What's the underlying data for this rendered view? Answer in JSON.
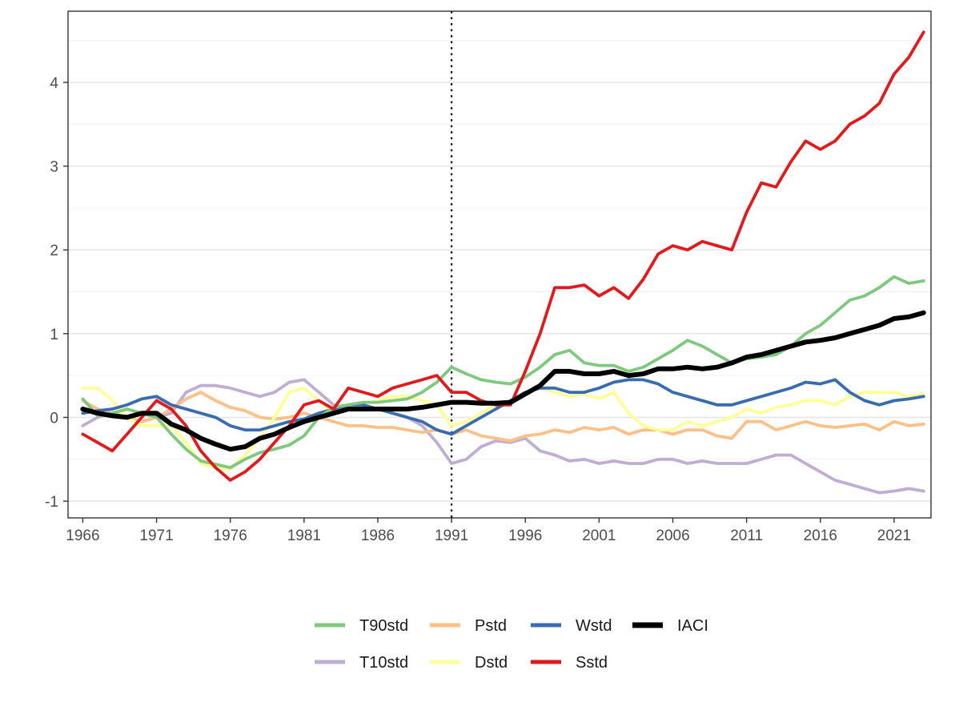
{
  "chart_data": {
    "type": "line",
    "title": "",
    "xlabel": "",
    "ylabel": "",
    "xlim": [
      1965.0,
      2023.5
    ],
    "ylim": [
      -1.2,
      4.85
    ],
    "x_ticks": [
      1966,
      1971,
      1976,
      1981,
      1986,
      1991,
      1996,
      2001,
      2006,
      2011,
      2016,
      2021
    ],
    "y_ticks": [
      -1,
      0,
      1,
      2,
      3,
      4
    ],
    "grid": true,
    "reference_line": {
      "x": 1991,
      "style": "dotted"
    },
    "legend_position": "bottom",
    "x": [
      1966,
      1967,
      1968,
      1969,
      1970,
      1971,
      1972,
      1973,
      1974,
      1975,
      1976,
      1977,
      1978,
      1979,
      1980,
      1981,
      1982,
      1983,
      1984,
      1985,
      1986,
      1987,
      1988,
      1989,
      1990,
      1991,
      1992,
      1993,
      1994,
      1995,
      1996,
      1997,
      1998,
      1999,
      2000,
      2001,
      2002,
      2003,
      2004,
      2005,
      2006,
      2007,
      2008,
      2009,
      2010,
      2011,
      2012,
      2013,
      2014,
      2015,
      2016,
      2017,
      2018,
      2019,
      2020,
      2021,
      2022,
      2023
    ],
    "series": [
      {
        "name": "T90std",
        "color": "#7fc97f",
        "values": [
          0.22,
          0.02,
          0.05,
          0.1,
          0.05,
          0.0,
          -0.2,
          -0.38,
          -0.52,
          -0.56,
          -0.6,
          -0.5,
          -0.42,
          -0.38,
          -0.33,
          -0.22,
          0.0,
          0.12,
          0.15,
          0.18,
          0.18,
          0.2,
          0.22,
          0.3,
          0.42,
          0.6,
          0.52,
          0.45,
          0.42,
          0.4,
          0.48,
          0.6,
          0.75,
          0.8,
          0.65,
          0.62,
          0.62,
          0.55,
          0.6,
          0.7,
          0.8,
          0.92,
          0.85,
          0.75,
          0.65,
          0.7,
          0.72,
          0.75,
          0.85,
          1.0,
          1.1,
          1.25,
          1.4,
          1.45,
          1.55,
          1.68,
          1.6,
          1.63
        ]
      },
      {
        "name": "Pstd",
        "color": "#fdc086",
        "values": [
          0.2,
          0.1,
          0.05,
          0.0,
          -0.05,
          0.0,
          0.1,
          0.22,
          0.3,
          0.2,
          0.12,
          0.08,
          0.0,
          -0.02,
          0.0,
          0.05,
          0.0,
          -0.05,
          -0.1,
          -0.1,
          -0.12,
          -0.12,
          -0.15,
          -0.18,
          -0.15,
          -0.2,
          -0.15,
          -0.22,
          -0.25,
          -0.28,
          -0.22,
          -0.2,
          -0.15,
          -0.18,
          -0.12,
          -0.15,
          -0.12,
          -0.2,
          -0.15,
          -0.15,
          -0.2,
          -0.15,
          -0.15,
          -0.22,
          -0.25,
          -0.05,
          -0.05,
          -0.15,
          -0.1,
          -0.05,
          -0.1,
          -0.12,
          -0.1,
          -0.08,
          -0.15,
          -0.05,
          -0.1,
          -0.08
        ]
      },
      {
        "name": "Wstd",
        "color": "#386cb0",
        "values": [
          0.05,
          0.08,
          0.1,
          0.15,
          0.22,
          0.25,
          0.15,
          0.1,
          0.05,
          0.0,
          -0.1,
          -0.15,
          -0.15,
          -0.1,
          -0.05,
          -0.02,
          0.05,
          0.1,
          0.15,
          0.15,
          0.1,
          0.05,
          0.0,
          -0.05,
          -0.15,
          -0.2,
          -0.1,
          0.0,
          0.1,
          0.2,
          0.3,
          0.35,
          0.35,
          0.3,
          0.3,
          0.35,
          0.42,
          0.45,
          0.45,
          0.4,
          0.3,
          0.25,
          0.2,
          0.15,
          0.15,
          0.2,
          0.25,
          0.3,
          0.35,
          0.42,
          0.4,
          0.45,
          0.3,
          0.2,
          0.15,
          0.2,
          0.22,
          0.25
        ]
      },
      {
        "name": "IACI",
        "color": "#000000",
        "values": [
          0.1,
          0.05,
          0.02,
          0.0,
          0.05,
          0.05,
          -0.08,
          -0.15,
          -0.25,
          -0.32,
          -0.38,
          -0.35,
          -0.25,
          -0.2,
          -0.12,
          -0.05,
          0.0,
          0.05,
          0.1,
          0.1,
          0.1,
          0.1,
          0.1,
          0.12,
          0.15,
          0.18,
          0.18,
          0.17,
          0.17,
          0.18,
          0.28,
          0.38,
          0.55,
          0.55,
          0.52,
          0.52,
          0.55,
          0.5,
          0.52,
          0.58,
          0.58,
          0.6,
          0.58,
          0.6,
          0.65,
          0.72,
          0.75,
          0.8,
          0.85,
          0.9,
          0.92,
          0.95,
          1.0,
          1.05,
          1.1,
          1.18,
          1.2,
          1.25
        ]
      },
      {
        "name": "T10std",
        "color": "#beaed4",
        "values": [
          -0.1,
          0.0,
          0.05,
          0.0,
          -0.05,
          0.0,
          0.05,
          0.3,
          0.38,
          0.38,
          0.35,
          0.3,
          0.25,
          0.3,
          0.42,
          0.45,
          0.3,
          0.15,
          0.1,
          0.12,
          0.1,
          0.05,
          0.0,
          -0.1,
          -0.3,
          -0.55,
          -0.5,
          -0.35,
          -0.28,
          -0.3,
          -0.25,
          -0.4,
          -0.45,
          -0.52,
          -0.5,
          -0.55,
          -0.52,
          -0.55,
          -0.55,
          -0.5,
          -0.5,
          -0.55,
          -0.52,
          -0.55,
          -0.55,
          -0.55,
          -0.5,
          -0.45,
          -0.45,
          -0.55,
          -0.65,
          -0.75,
          -0.8,
          -0.85,
          -0.9,
          -0.88,
          -0.85,
          -0.88
        ]
      },
      {
        "name": "Dstd",
        "color": "#ffff99",
        "values": [
          0.35,
          0.35,
          0.2,
          0.0,
          -0.1,
          -0.1,
          -0.1,
          -0.3,
          -0.55,
          -0.6,
          -0.62,
          -0.45,
          -0.25,
          0.0,
          0.3,
          0.35,
          0.2,
          0.05,
          0.1,
          0.15,
          0.2,
          0.25,
          0.25,
          0.2,
          0.15,
          -0.1,
          -0.05,
          0.05,
          0.15,
          0.2,
          0.3,
          0.35,
          0.3,
          0.25,
          0.28,
          0.22,
          0.3,
          0.05,
          -0.1,
          -0.15,
          -0.15,
          -0.05,
          -0.1,
          -0.05,
          0.0,
          0.1,
          0.05,
          0.12,
          0.15,
          0.2,
          0.2,
          0.15,
          0.25,
          0.3,
          0.3,
          0.3,
          0.25,
          0.28
        ]
      },
      {
        "name": "Sstd",
        "color": "#e31a1c",
        "values": [
          -0.2,
          -0.3,
          -0.4,
          -0.2,
          0.0,
          0.2,
          0.1,
          -0.1,
          -0.4,
          -0.6,
          -0.75,
          -0.65,
          -0.5,
          -0.3,
          -0.1,
          0.15,
          0.2,
          0.1,
          0.35,
          0.3,
          0.25,
          0.35,
          0.4,
          0.45,
          0.5,
          0.3,
          0.3,
          0.2,
          0.15,
          0.15,
          0.55,
          1.0,
          1.55,
          1.55,
          1.58,
          1.45,
          1.55,
          1.42,
          1.65,
          1.95,
          2.05,
          2.0,
          2.1,
          2.05,
          2.0,
          2.45,
          2.8,
          2.75,
          3.05,
          3.3,
          3.2,
          3.3,
          3.5,
          3.6,
          3.75,
          4.1,
          4.3,
          4.6
        ]
      }
    ]
  },
  "axis": {
    "x_tick_labels": [
      "1966",
      "1971",
      "1976",
      "1981",
      "1986",
      "1991",
      "1996",
      "2001",
      "2006",
      "2011",
      "2016",
      "2021"
    ],
    "y_tick_labels": [
      "-1",
      "0",
      "1",
      "2",
      "3",
      "4"
    ]
  },
  "legend": {
    "items": [
      {
        "label": "T90std",
        "color": "#7fc97f"
      },
      {
        "label": "Pstd",
        "color": "#fdc086"
      },
      {
        "label": "Wstd",
        "color": "#386cb0"
      },
      {
        "label": "IACI",
        "color": "#000000"
      },
      {
        "label": "T10std",
        "color": "#beaed4"
      },
      {
        "label": "Dstd",
        "color": "#ffff99"
      },
      {
        "label": "Sstd",
        "color": "#e31a1c"
      }
    ]
  }
}
